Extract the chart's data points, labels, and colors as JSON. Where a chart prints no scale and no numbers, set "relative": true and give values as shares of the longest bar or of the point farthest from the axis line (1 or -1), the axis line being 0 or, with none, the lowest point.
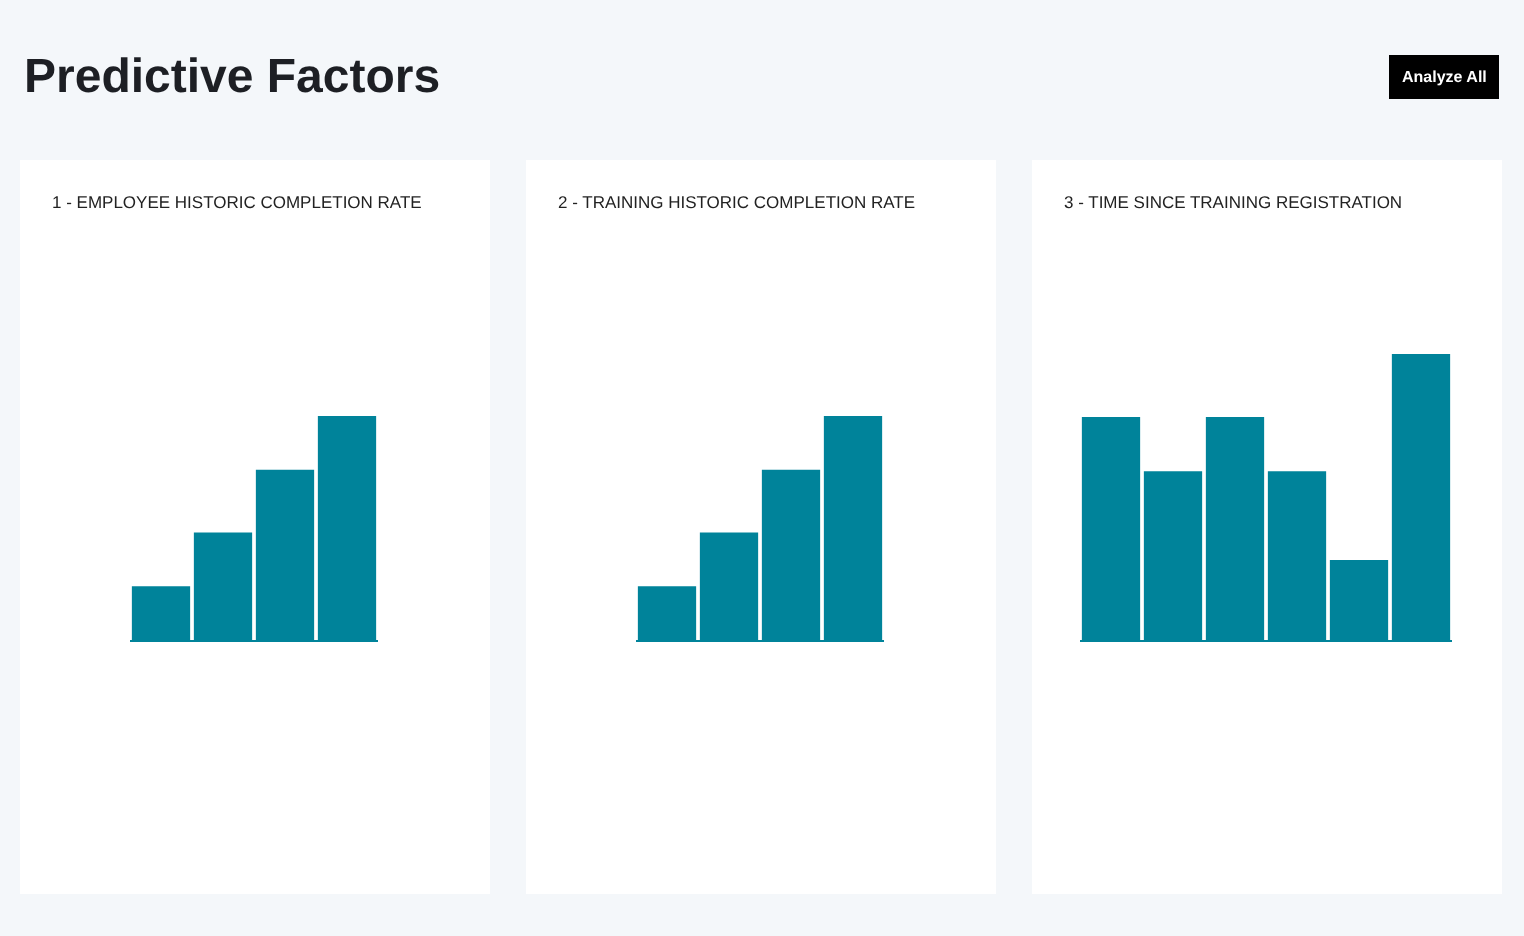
{
  "chart_data": [
    {
      "type": "other",
      "title": "Predictive Factors",
      "annotations": [
        "Analyze All"
      ]
    },
    {
      "type": "bar",
      "title": "1 - EMPLOYEE HISTORIC COMPLETION RATE",
      "categories": [
        null,
        null,
        null,
        null
      ],
      "values": [
        0.24,
        0.48,
        0.76,
        1
      ],
      "relative": true,
      "color": "#00839a"
    },
    {
      "type": "bar",
      "title": "2 - TRAINING HISTORIC COMPLETION RATE",
      "categories": [
        null,
        null,
        null,
        null
      ],
      "values": [
        0.24,
        0.48,
        0.76,
        1
      ],
      "relative": true,
      "color": "#00839a"
    },
    {
      "type": "bar",
      "title": "3 - TIME SINCE TRAINING REGISTRATION",
      "categories": [
        null,
        null,
        null,
        null,
        null,
        null
      ],
      "values": [
        0.78,
        0.59,
        0.78,
        0.59,
        0.28,
        1
      ],
      "relative": true,
      "color": "#00839a"
    }
  ]
}
